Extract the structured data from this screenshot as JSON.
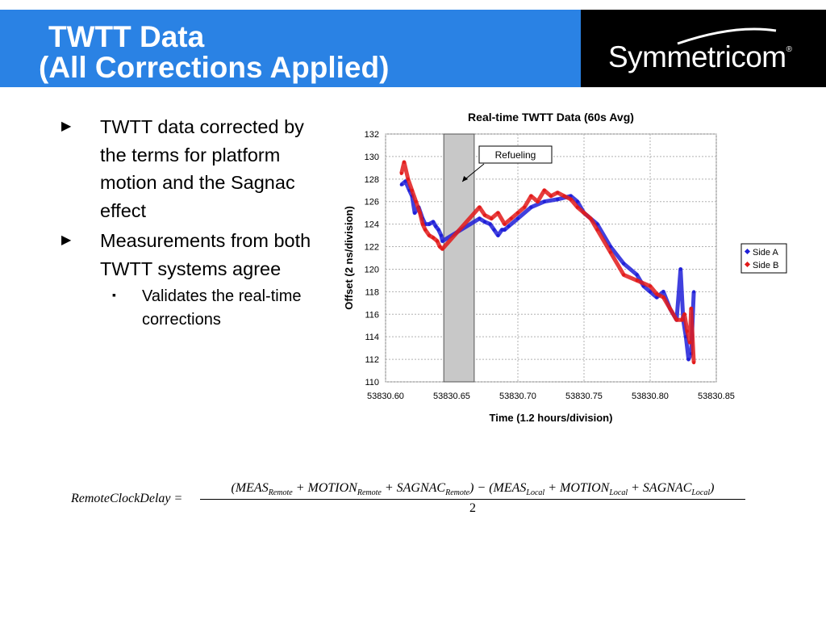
{
  "slide": {
    "title_line1": "TWTT Data",
    "title_line2": "(All Corrections Applied)",
    "logo": "Symmetricom",
    "logo_mark": "®",
    "colors": {
      "title_bar": "#2a82e4",
      "logo_bg": "#000000",
      "side_a": "#1f1fd8",
      "side_b": "#e21a1a",
      "refuel_band": "#c8c8c8"
    }
  },
  "bullets": [
    {
      "marker": "▶",
      "text": "TWTT data corrected by the terms for platform motion and the Sagnac effect"
    },
    {
      "marker": "▶",
      "text": "Measurements from both TWTT systems agree"
    }
  ],
  "subbullets": [
    {
      "marker": "▪",
      "text": "Validates the real-time corrections"
    }
  ],
  "chart_data": {
    "type": "scatter",
    "title": "Real-time TWTT Data (60s Avg)",
    "xlabel": "Time (1.2 hours/division)",
    "ylabel": "Offset (2 ns/division)",
    "xlim": [
      53830.6,
      53830.85
    ],
    "ylim": [
      110,
      132
    ],
    "x_ticks": [
      "53830.60",
      "53830.65",
      "53830.70",
      "53830.75",
      "53830.80",
      "53830.85"
    ],
    "y_ticks": [
      "110",
      "112",
      "114",
      "116",
      "118",
      "120",
      "122",
      "124",
      "126",
      "128",
      "130",
      "132"
    ],
    "grid": true,
    "legend_position": "right",
    "annotation": {
      "text": "Refueling",
      "band_start": 53830.644,
      "band_end": 53830.667
    },
    "series": [
      {
        "name": "Side A",
        "color": "#1f1fd8",
        "x": [
          53830.612,
          53830.615,
          53830.618,
          53830.62,
          53830.622,
          53830.625,
          53830.628,
          53830.63,
          53830.633,
          53830.636,
          53830.638,
          53830.64,
          53830.642,
          53830.643,
          53830.671,
          53830.675,
          53830.679,
          53830.682,
          53830.685,
          53830.688,
          53830.69,
          53830.693,
          53830.7,
          53830.71,
          53830.72,
          53830.73,
          53830.74,
          53830.745,
          53830.75,
          53830.755,
          53830.76,
          53830.77,
          53830.78,
          53830.79,
          53830.795,
          53830.8,
          53830.805,
          53830.81,
          53830.815,
          53830.82,
          53830.823,
          53830.825,
          53830.827,
          53830.829,
          53830.831,
          53830.833
        ],
        "y": [
          127.5,
          127.8,
          127.0,
          126.5,
          125.0,
          125.5,
          124.5,
          124.0,
          124.0,
          124.2,
          123.8,
          123.5,
          123.0,
          122.5,
          124.5,
          124.2,
          124.0,
          123.5,
          123.0,
          123.5,
          123.5,
          123.8,
          124.5,
          125.5,
          126.0,
          126.2,
          126.5,
          126.0,
          125.0,
          124.5,
          124.0,
          122.0,
          120.5,
          119.5,
          118.5,
          118.0,
          117.5,
          118.0,
          116.5,
          115.5,
          120.0,
          115.5,
          114.0,
          112.0,
          112.5,
          118.0
        ]
      },
      {
        "name": "Side B",
        "color": "#e21a1a",
        "x": [
          53830.612,
          53830.614,
          53830.617,
          53830.62,
          53830.623,
          53830.626,
          53830.628,
          53830.63,
          53830.633,
          53830.636,
          53830.639,
          53830.641,
          53830.643,
          53830.671,
          53830.675,
          53830.68,
          53830.685,
          53830.69,
          53830.695,
          53830.7,
          53830.705,
          53830.71,
          53830.715,
          53830.72,
          53830.725,
          53830.73,
          53830.735,
          53830.74,
          53830.745,
          53830.75,
          53830.755,
          53830.76,
          53830.77,
          53830.78,
          53830.79,
          53830.8,
          53830.805,
          53830.81,
          53830.815,
          53830.82,
          53830.824,
          53830.826,
          53830.828,
          53830.83,
          53830.831,
          53830.833
        ],
        "y": [
          128.5,
          129.5,
          128.0,
          127.0,
          126.0,
          125.0,
          124.0,
          123.5,
          123.0,
          122.8,
          122.5,
          122.0,
          121.8,
          125.5,
          124.8,
          124.5,
          125.0,
          124.0,
          124.5,
          125.0,
          125.5,
          126.5,
          126.0,
          127.0,
          126.5,
          126.8,
          126.5,
          126.2,
          125.5,
          125.0,
          124.5,
          123.5,
          121.5,
          119.5,
          119.0,
          118.5,
          117.8,
          117.5,
          116.5,
          115.5,
          115.5,
          116.0,
          114.5,
          113.5,
          116.5,
          111.7
        ]
      }
    ]
  },
  "equation": {
    "lhs": "RemoteClockDelay =",
    "numerator": [
      {
        "t": "(MEAS"
      },
      {
        "s": "Remote"
      },
      {
        "t": " + MOTION"
      },
      {
        "s": "Remote"
      },
      {
        "t": " + SAGNAC"
      },
      {
        "s": "Remote"
      },
      {
        "t": ") − (MEAS"
      },
      {
        "s": "Local"
      },
      {
        "t": " + MOTION"
      },
      {
        "s": "Local"
      },
      {
        "t": " + SAGNAC"
      },
      {
        "s": "Local"
      },
      {
        "t": ")"
      }
    ],
    "denominator": "2"
  }
}
